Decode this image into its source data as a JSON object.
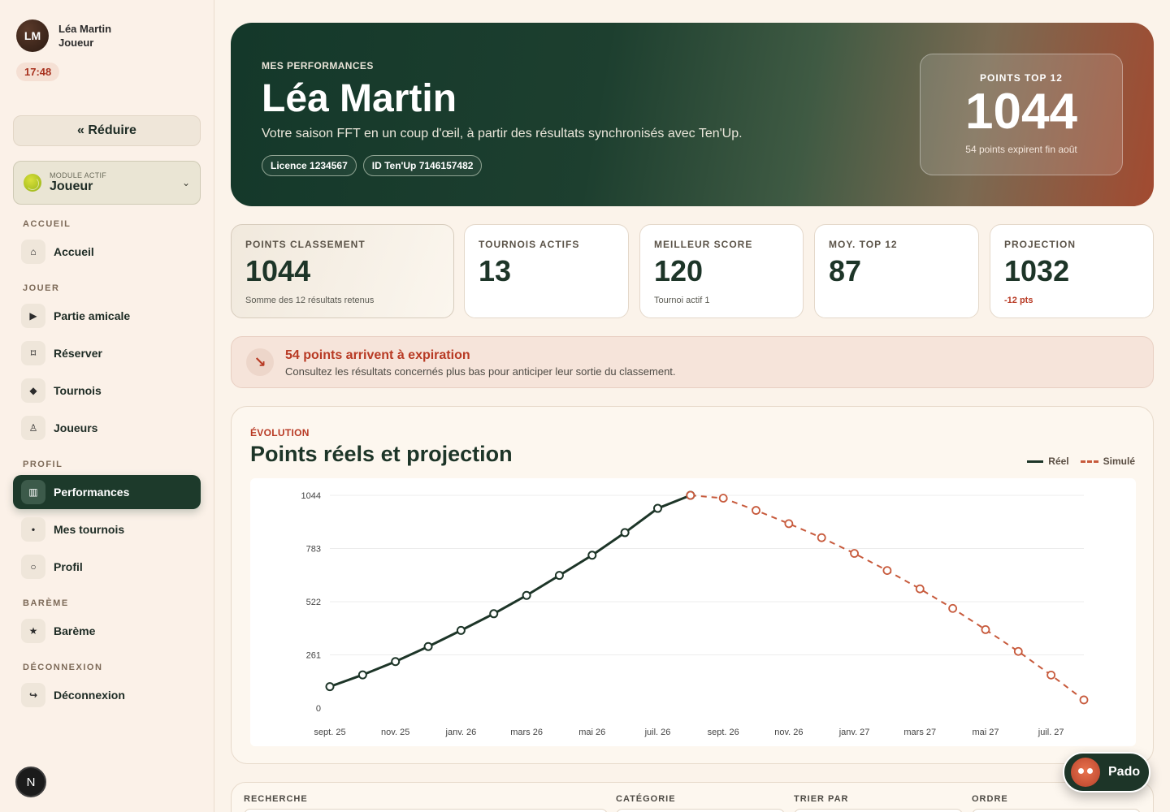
{
  "user": {
    "initials": "LM",
    "name": "Léa Martin",
    "role": "Joueur",
    "time": "17:48"
  },
  "sidebar": {
    "reduce_label": "«  Réduire",
    "module_label": "MODULE ACTIF",
    "module_value": "Joueur",
    "sections": {
      "accueil": "ACCUEIL",
      "jouer": "JOUER",
      "profil": "PROFIL",
      "bareme": "BARÈME",
      "deconnexion": "DÉCONNEXION"
    },
    "items": {
      "accueil": {
        "label": "Accueil",
        "icon": "home-icon",
        "glyph": "⌂"
      },
      "partie": {
        "label": "Partie amicale",
        "icon": "play-icon",
        "glyph": "▶"
      },
      "reserver": {
        "label": "Réserver",
        "icon": "calendar-icon",
        "glyph": "⌑"
      },
      "tournois": {
        "label": "Tournois",
        "icon": "diamond-icon",
        "glyph": "◆"
      },
      "joueurs": {
        "label": "Joueurs",
        "icon": "person-icon",
        "glyph": "♙"
      },
      "performances": {
        "label": "Performances",
        "icon": "chart-icon",
        "glyph": "▥"
      },
      "mes_tournois": {
        "label": "Mes tournois",
        "icon": "dot-icon",
        "glyph": "•"
      },
      "profil": {
        "label": "Profil",
        "icon": "circle-icon",
        "glyph": "○"
      },
      "bareme": {
        "label": "Barème",
        "icon": "star-icon",
        "glyph": "★"
      },
      "deconnexion": {
        "label": "Déconnexion",
        "icon": "logout-icon",
        "glyph": "↪"
      }
    },
    "footer_badge": "N"
  },
  "hero": {
    "eyebrow": "MES PERFORMANCES",
    "title": "Léa Martin",
    "subtitle": "Votre saison FFT en un coup d'œil, à partir des résultats synchronisés avec Ten'Up.",
    "licence": "Licence 1234567",
    "tenup": "ID Ten'Up 7146157482",
    "card_label": "POINTS TOP 12",
    "card_value": "1044",
    "card_note": "54 points expirent fin août"
  },
  "stats": [
    {
      "label": "POINTS CLASSEMENT",
      "value": "1044",
      "note": "Somme des 12 résultats retenus"
    },
    {
      "label": "TOURNOIS ACTIFS",
      "value": "13",
      "note": ""
    },
    {
      "label": "MEILLEUR SCORE",
      "value": "120",
      "note": "Tournoi actif 1"
    },
    {
      "label": "MOY. TOP 12",
      "value": "87",
      "note": ""
    },
    {
      "label": "PROJECTION",
      "value": "1032",
      "note": "-12 pts"
    }
  ],
  "alert": {
    "title": "54 points arrivent à expiration",
    "text": "Consultez les résultats concernés plus bas pour anticiper leur sortie du classement."
  },
  "chart_section": {
    "eyebrow": "ÉVOLUTION",
    "title": "Points réels et projection",
    "legend_real": "Réel",
    "legend_sim": "Simulé"
  },
  "chart_data": {
    "type": "line",
    "x_ticks": [
      "sept. 25",
      "nov. 25",
      "janv. 26",
      "mars 26",
      "mai 26",
      "juil. 26",
      "sept. 26",
      "nov. 26",
      "janv. 27",
      "mars 27",
      "mai 27",
      "juil. 27"
    ],
    "y_ticks": [
      0,
      261,
      522,
      783,
      1044
    ],
    "ylim": [
      0,
      1044
    ],
    "grid": true,
    "legend_position": "top-right",
    "colors": {
      "real": "#1d3528",
      "simulated": "#c75a3c"
    },
    "series": [
      {
        "name": "Réel",
        "style": "solid",
        "x": [
          "sept. 25",
          "oct. 25",
          "nov. 25",
          "déc. 25",
          "janv. 26",
          "févr. 26",
          "mars 26",
          "avr. 26",
          "mai 26",
          "juin 26",
          "juil. 26",
          "août 26"
        ],
        "values": [
          105,
          163,
          228,
          302,
          381,
          463,
          553,
          651,
          750,
          861,
          980,
          1044
        ]
      },
      {
        "name": "Simulé",
        "style": "dashed",
        "x": [
          "août 26",
          "sept. 26",
          "oct. 26",
          "nov. 26",
          "déc. 26",
          "janv. 27",
          "févr. 27",
          "mars 27",
          "avr. 27",
          "mai 27",
          "juin 27",
          "juil. 27",
          "août 27"
        ],
        "values": [
          1044,
          1030,
          970,
          905,
          836,
          759,
          675,
          585,
          489,
          385,
          278,
          162,
          40
        ]
      }
    ]
  },
  "filters": {
    "search": "RECHERCHE",
    "category": "CATÉGORIE",
    "sort": "TRIER PAR",
    "order": "ORDRE"
  },
  "assistant": {
    "name": "Pado"
  }
}
